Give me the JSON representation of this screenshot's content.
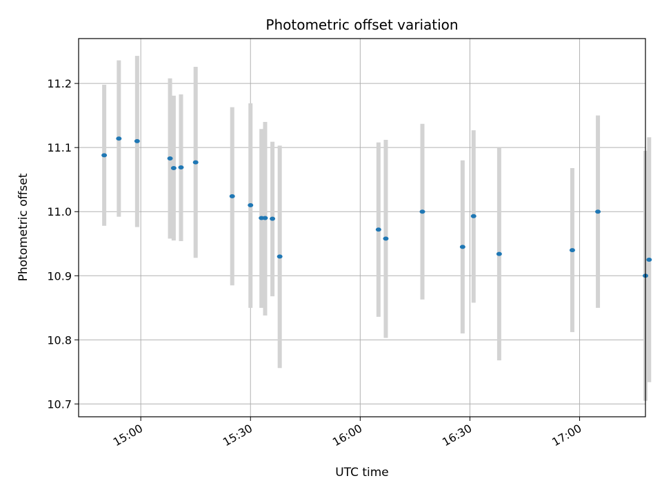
{
  "chart_data": {
    "type": "scatter",
    "title": "Photometric offset variation",
    "xlabel": "UTC time",
    "ylabel": "Photometric offset",
    "xlim": [
      "14:43",
      "17:18"
    ],
    "ylim": [
      10.68,
      11.27
    ],
    "x_ticks": [
      "15:00",
      "15:30",
      "16:00",
      "16:30",
      "17:00"
    ],
    "y_ticks": [
      10.7,
      10.8,
      10.9,
      11.0,
      11.1,
      11.2
    ],
    "grid": true,
    "point_color": "#1f77b4",
    "errorbar_color": "#d3d3d3",
    "series": [
      {
        "points": [
          {
            "x": "14:50",
            "y": 11.088,
            "ylo": 10.978,
            "yhi": 11.198
          },
          {
            "x": "14:54",
            "y": 11.114,
            "ylo": 10.992,
            "yhi": 11.236
          },
          {
            "x": "14:59",
            "y": 11.11,
            "ylo": 10.976,
            "yhi": 11.243
          },
          {
            "x": "15:08",
            "y": 11.083,
            "ylo": 10.958,
            "yhi": 11.208
          },
          {
            "x": "15:09",
            "y": 11.068,
            "ylo": 10.955,
            "yhi": 11.181
          },
          {
            "x": "15:11",
            "y": 11.069,
            "ylo": 10.954,
            "yhi": 11.183
          },
          {
            "x": "15:15",
            "y": 11.077,
            "ylo": 10.928,
            "yhi": 11.226
          },
          {
            "x": "15:25",
            "y": 11.024,
            "ylo": 10.885,
            "yhi": 11.163
          },
          {
            "x": "15:30",
            "y": 11.01,
            "ylo": 10.85,
            "yhi": 11.169
          },
          {
            "x": "15:33",
            "y": 10.99,
            "ylo": 10.85,
            "yhi": 11.129
          },
          {
            "x": "15:34",
            "y": 10.99,
            "ylo": 10.838,
            "yhi": 11.14
          },
          {
            "x": "15:36",
            "y": 10.989,
            "ylo": 10.868,
            "yhi": 11.109
          },
          {
            "x": "15:38",
            "y": 10.93,
            "ylo": 10.756,
            "yhi": 11.103
          },
          {
            "x": "16:05",
            "y": 10.972,
            "ylo": 10.836,
            "yhi": 11.108
          },
          {
            "x": "16:07",
            "y": 10.958,
            "ylo": 10.803,
            "yhi": 11.112
          },
          {
            "x": "16:17",
            "y": 11.0,
            "ylo": 10.863,
            "yhi": 11.137
          },
          {
            "x": "16:28",
            "y": 10.945,
            "ylo": 10.81,
            "yhi": 11.08
          },
          {
            "x": "16:31",
            "y": 10.993,
            "ylo": 10.858,
            "yhi": 11.127
          },
          {
            "x": "16:38",
            "y": 10.934,
            "ylo": 10.768,
            "yhi": 11.1
          },
          {
            "x": "16:58",
            "y": 10.94,
            "ylo": 10.812,
            "yhi": 11.068
          },
          {
            "x": "17:05",
            "y": 11.0,
            "ylo": 10.85,
            "yhi": 11.15
          },
          {
            "x": "17:18",
            "y": 10.9,
            "ylo": 10.705,
            "yhi": 11.095
          },
          {
            "x": "17:19",
            "y": 10.925,
            "ylo": 10.734,
            "yhi": 11.116
          }
        ]
      }
    ]
  }
}
